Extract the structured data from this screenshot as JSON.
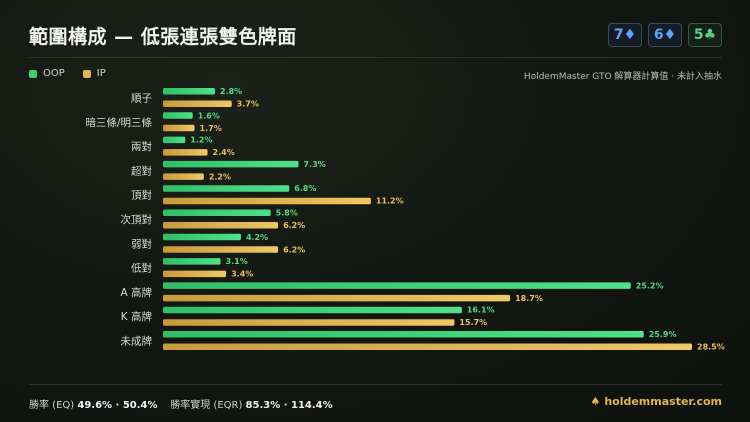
{
  "title": "範圍構成 — 低張連張雙色牌面",
  "board": [
    {
      "rank": "7",
      "suit": "♦",
      "suit_class": "suit-d"
    },
    {
      "rank": "6",
      "suit": "♦",
      "suit_class": "suit-d"
    },
    {
      "rank": "5",
      "suit": "♣",
      "suit_class": "suit-c"
    }
  ],
  "source_note": "HoldemMaster GTO 解算器計算值 · 未計入抽水",
  "colors": {
    "oop": "#3ecf73",
    "ip": "#e1b64f",
    "label": "#d7dbd3",
    "oop_text": "#4fdc85",
    "ip_text": "#e8c060"
  },
  "chart_data": {
    "type": "bar",
    "orientation": "horizontal",
    "categories": [
      "順子",
      "暗三條/明三條",
      "兩對",
      "超對",
      "頂對",
      "次頂對",
      "弱對",
      "低對",
      "A 高牌",
      "K 高牌",
      "未成牌"
    ],
    "series": [
      {
        "name": "OOP",
        "values": [
          2.8,
          1.6,
          1.2,
          7.3,
          6.8,
          5.8,
          4.2,
          3.1,
          25.2,
          16.1,
          25.9
        ]
      },
      {
        "name": "IP",
        "values": [
          3.7,
          1.7,
          2.4,
          2.2,
          11.2,
          6.2,
          6.2,
          3.4,
          18.7,
          15.7,
          28.5
        ]
      }
    ],
    "value_suffix": "%",
    "xlim": [
      0,
      28.5
    ],
    "legend": "top-left",
    "grid": false
  },
  "footer": {
    "eq_label": "勝率 (EQ)",
    "eq_values": "49.6% · 50.4%",
    "eqr_label": "勝率實現 (EQR)",
    "eqr_values": "85.3% · 114.4%",
    "brand": "holdemmaster.com",
    "brand_icon": "♠"
  }
}
